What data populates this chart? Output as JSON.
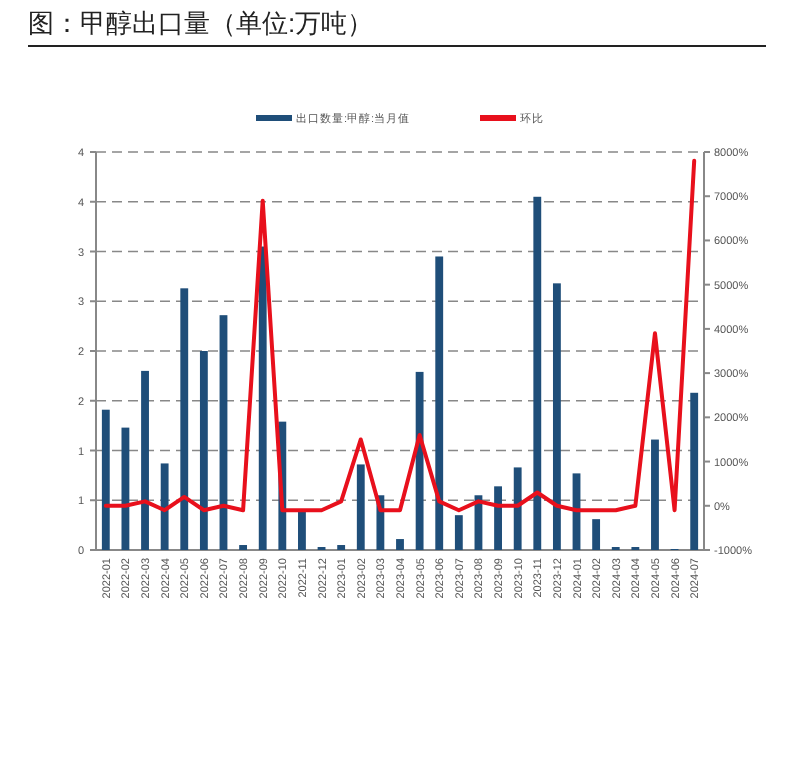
{
  "chart_data": {
    "type": "bar",
    "title": "图：甲醇出口量（单位:万吨）",
    "categories": [
      "2022-01",
      "2022-02",
      "2022-03",
      "2022-04",
      "2022-05",
      "2022-06",
      "2022-07",
      "2022-08",
      "2022-09",
      "2022-10",
      "2022-11",
      "2022-12",
      "2023-01",
      "2023-02",
      "2023-03",
      "2023-04",
      "2023-05",
      "2023-06",
      "2023-07",
      "2023-08",
      "2023-09",
      "2023-10",
      "2023-11",
      "2023-12",
      "2024-01",
      "2024-02",
      "2024-03",
      "2024-04",
      "2024-05",
      "2024-06",
      "2024-07"
    ],
    "series": [
      {
        "name": "出口数量:甲醇:当月值",
        "color": "#1f4e79",
        "values": [
          1.41,
          1.23,
          1.8,
          0.87,
          2.63,
          2.0,
          2.36,
          0.05,
          3.05,
          1.29,
          0.4,
          0.03,
          0.05,
          0.86,
          0.55,
          0.11,
          1.79,
          2.95,
          0.35,
          0.55,
          0.64,
          0.83,
          3.55,
          2.68,
          0.77,
          0.31,
          0.03,
          0.03,
          1.11,
          0.01,
          1.58
        ]
      },
      {
        "name": "环比",
        "type": "line",
        "axis": "y2",
        "color": "#e8101c",
        "values": [
          0,
          0,
          100,
          -100,
          200,
          -100,
          0,
          -100,
          6900,
          -100,
          -100,
          -100,
          100,
          1500,
          -100,
          -100,
          1600,
          100,
          -100,
          100,
          0,
          0,
          300,
          0,
          -100,
          -100,
          -100,
          0,
          3900,
          -100,
          7800
        ]
      }
    ],
    "ylim": [
      0,
      4
    ],
    "yticks": [
      0,
      {
        "value": 0.5,
        "label": "1"
      },
      1,
      {
        "value": 1.5,
        "label": "2"
      },
      2,
      {
        "value": 2.5,
        "label": "3"
      },
      3,
      {
        "value": 3.5,
        "label": "4"
      },
      4
    ],
    "y2lim": [
      -1000,
      8000
    ],
    "y2ticks": [
      {
        "value": -1000,
        "label": "-1000%"
      },
      {
        "value": 0,
        "label": "0%"
      },
      {
        "value": 1000,
        "label": "1000%"
      },
      {
        "value": 2000,
        "label": "2000%"
      },
      {
        "value": 3000,
        "label": "3000%"
      },
      {
        "value": 4000,
        "label": "4000%"
      },
      {
        "value": 5000,
        "label": "5000%"
      },
      {
        "value": 6000,
        "label": "6000%"
      },
      {
        "value": 7000,
        "label": "7000%"
      },
      {
        "value": 8000,
        "label": "8000%"
      }
    ],
    "grid": "y",
    "legend": "top"
  }
}
